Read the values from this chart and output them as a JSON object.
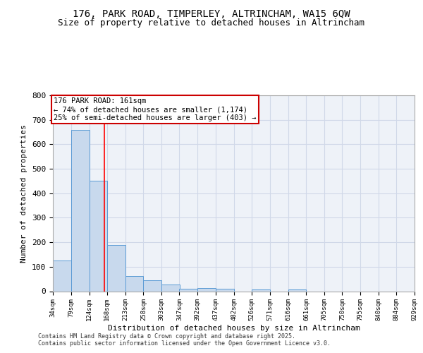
{
  "title_line1": "176, PARK ROAD, TIMPERLEY, ALTRINCHAM, WA15 6QW",
  "title_line2": "Size of property relative to detached houses in Altrincham",
  "xlabel": "Distribution of detached houses by size in Altrincham",
  "ylabel": "Number of detached properties",
  "bar_left_edges": [
    34,
    79,
    124,
    168,
    213,
    258,
    303,
    347,
    392,
    437,
    482,
    526,
    571,
    616,
    661,
    705,
    750,
    795,
    840,
    884
  ],
  "bar_heights": [
    125,
    660,
    450,
    190,
    63,
    46,
    27,
    10,
    12,
    10,
    0,
    8,
    0,
    7,
    0,
    0,
    0,
    0,
    0,
    0
  ],
  "bin_width": 45,
  "tick_labels": [
    "34sqm",
    "79sqm",
    "124sqm",
    "168sqm",
    "213sqm",
    "258sqm",
    "303sqm",
    "347sqm",
    "392sqm",
    "437sqm",
    "482sqm",
    "526sqm",
    "571sqm",
    "616sqm",
    "661sqm",
    "705sqm",
    "750sqm",
    "795sqm",
    "840sqm",
    "884sqm",
    "929sqm"
  ],
  "bar_color": "#c8d9ed",
  "bar_edge_color": "#5b9bd5",
  "red_line_x": 161,
  "annotation_line1": "176 PARK ROAD: 161sqm",
  "annotation_line2": "← 74% of detached houses are smaller (1,174)",
  "annotation_line3": "25% of semi-detached houses are larger (403) →",
  "annotation_box_color": "#cc0000",
  "ylim": [
    0,
    800
  ],
  "yticks": [
    0,
    100,
    200,
    300,
    400,
    500,
    600,
    700,
    800
  ],
  "grid_color": "#d0d8e8",
  "bg_color": "#eef2f8",
  "footer_line1": "Contains HM Land Registry data © Crown copyright and database right 2025.",
  "footer_line2": "Contains public sector information licensed under the Open Government Licence v3.0.",
  "title_fontsize": 10,
  "subtitle_fontsize": 9,
  "annotation_fontsize": 7.5
}
